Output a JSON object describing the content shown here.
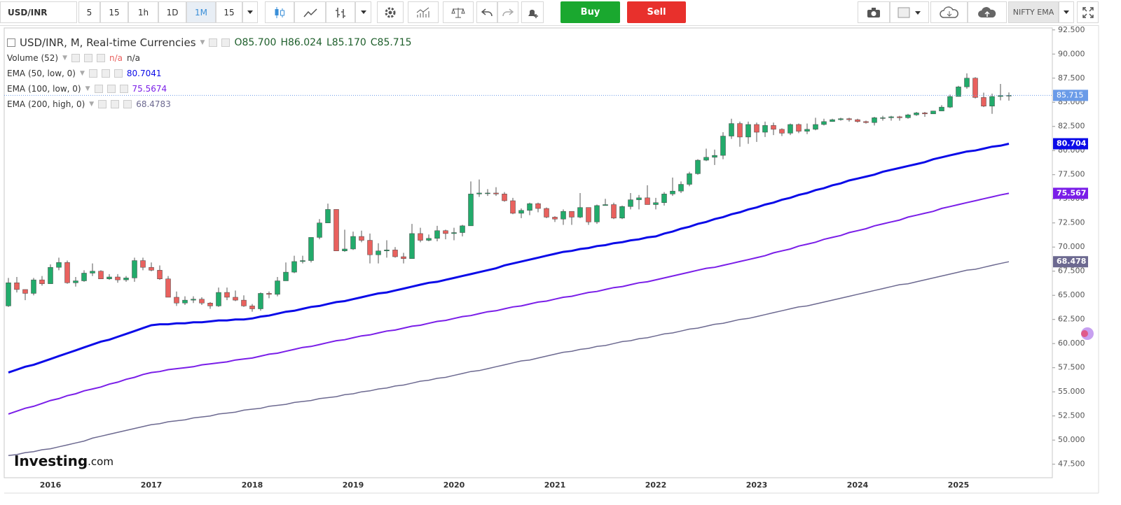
{
  "toolbar": {
    "symbol": "USD/INR",
    "intervals": [
      "5",
      "15",
      "1h",
      "1D",
      "1M",
      "15"
    ],
    "buy": "Buy",
    "sell": "Sell",
    "template": "NIFTY EMA"
  },
  "legend": {
    "title": "USD/INR, M, Real-time Currencies",
    "ohlc": [
      "O85.700",
      "H86.024",
      "L85.170",
      "C85.715"
    ],
    "volume": {
      "name": "Volume (52)",
      "values": [
        "n/a",
        "n/a"
      ]
    }
  },
  "watermark": {
    "brand": "Investing",
    "suffix": ".com"
  },
  "chart_data": {
    "type": "candlestick",
    "categories": [
      null,
      null,
      null,
      null,
      null,
      "2016",
      null,
      null,
      null,
      null,
      null,
      null,
      null,
      null,
      null,
      null,
      null,
      "2017",
      null,
      null,
      null,
      null,
      null,
      null,
      null,
      null,
      null,
      null,
      null,
      "2018",
      null,
      null,
      null,
      null,
      null,
      null,
      null,
      null,
      null,
      null,
      null,
      "2019",
      null,
      null,
      null,
      null,
      null,
      null,
      null,
      null,
      null,
      null,
      null,
      "2020",
      null,
      null,
      null,
      null,
      null,
      null,
      null,
      null,
      null,
      null,
      null,
      "2021",
      null,
      null,
      null,
      null,
      null,
      null,
      null,
      null,
      null,
      null,
      null,
      "2022",
      null,
      null,
      null,
      null,
      null,
      null,
      null,
      null,
      null,
      null,
      null,
      "2023",
      null,
      null,
      null,
      null,
      null,
      null,
      null,
      null,
      null,
      null,
      null,
      "2024",
      null,
      null,
      null,
      null,
      null,
      null,
      null,
      null,
      null,
      null,
      null,
      "2025",
      null,
      null,
      null,
      null,
      null,
      null
    ],
    "open": [
      63.9,
      66.3,
      65.6,
      65.2,
      66.6,
      66.2,
      67.9,
      68.4,
      66.3,
      66.5,
      67.3,
      67.5,
      66.7,
      66.9,
      66.6,
      66.8,
      68.6,
      67.9,
      67.6,
      66.7,
      64.8,
      64.2,
      64.5,
      64.6,
      64.2,
      63.9,
      65.3,
      64.8,
      64.5,
      63.9,
      63.6,
      65.2,
      65.1,
      66.5,
      67.4,
      68.5,
      68.6,
      71.0,
      72.5,
      73.9,
      69.6,
      69.8,
      71.1,
      70.7,
      69.2,
      69.6,
      69.7,
      69.0,
      68.8,
      71.4,
      70.7,
      70.9,
      71.7,
      71.4,
      71.5,
      72.2,
      75.5,
      75.6,
      75.6,
      75.5,
      74.8,
      73.5,
      73.8,
      74.5,
      74.0,
      73.1,
      72.9,
      73.7,
      73.1,
      74.1,
      72.6,
      74.3,
      74.4,
      73.0,
      74.2,
      74.9,
      75.1,
      74.4,
      74.6,
      75.5,
      75.8,
      76.5,
      77.6,
      79.0,
      79.3,
      79.5,
      81.5,
      82.8,
      81.4,
      82.7,
      81.9,
      82.6,
      82.2,
      81.8,
      82.7,
      82.0,
      82.2,
      82.7,
      83.0,
      83.2,
      83.3,
      83.2,
      83.0,
      82.9,
      83.4,
      83.4,
      83.5,
      83.4,
      83.7,
      83.9,
      83.8,
      84.1,
      84.5,
      85.6,
      86.6,
      87.5,
      85.5,
      84.6,
      85.6,
      85.7
    ],
    "high": [
      66.8,
      66.9,
      65.6,
      66.8,
      67.0,
      68.2,
      68.9,
      68.6,
      66.9,
      67.6,
      68.3,
      67.6,
      67.2,
      67.2,
      67.0,
      68.9,
      68.9,
      68.4,
      68.1,
      67.0,
      65.4,
      64.9,
      64.9,
      64.8,
      64.3,
      65.8,
      65.8,
      65.5,
      65.0,
      64.1,
      65.3,
      65.4,
      66.9,
      68.4,
      69.1,
      69.1,
      71.0,
      72.9,
      74.5,
      73.9,
      71.8,
      71.6,
      71.7,
      71.4,
      70.4,
      70.7,
      70.0,
      69.4,
      72.4,
      72.0,
      71.3,
      72.2,
      71.8,
      72.0,
      72.3,
      76.8,
      77.0,
      76.0,
      76.2,
      75.7,
      75.1,
      74.0,
      74.6,
      74.6,
      74.1,
      73.2,
      73.9,
      73.7,
      75.6,
      74.1,
      74.4,
      75.0,
      74.6,
      74.3,
      75.6,
      75.4,
      76.4,
      75.1,
      75.7,
      77.2,
      76.8,
      77.8,
      79.1,
      80.2,
      80.1,
      81.9,
      83.3,
      83.0,
      83.0,
      82.9,
      83.0,
      82.9,
      82.3,
      82.8,
      82.8,
      82.8,
      83.4,
      83.3,
      83.3,
      83.4,
      83.4,
      83.3,
      83.1,
      83.5,
      83.6,
      83.6,
      83.6,
      83.8,
      84.0,
      84.0,
      84.1,
      84.7,
      85.8,
      86.7,
      88.0,
      87.6,
      86.0,
      85.9,
      86.9,
      86.024
    ],
    "low": [
      63.8,
      65.3,
      64.5,
      65.0,
      66.0,
      66.2,
      67.6,
      66.2,
      65.9,
      66.4,
      67.0,
      66.7,
      66.6,
      66.3,
      66.4,
      66.4,
      67.6,
      67.5,
      66.6,
      64.8,
      63.9,
      64.0,
      64.2,
      64.0,
      63.6,
      63.8,
      64.5,
      64.4,
      63.8,
      63.3,
      63.4,
      64.7,
      64.9,
      66.5,
      67.3,
      68.3,
      68.4,
      70.8,
      72.5,
      69.6,
      69.5,
      69.7,
      70.5,
      68.3,
      68.3,
      68.9,
      68.9,
      68.3,
      68.8,
      70.5,
      70.6,
      70.6,
      70.8,
      70.7,
      71.1,
      72.2,
      75.2,
      75.3,
      75.3,
      74.7,
      73.4,
      73.0,
      73.3,
      73.6,
      73.0,
      72.6,
      72.3,
      72.3,
      73.0,
      72.3,
      72.4,
      74.3,
      72.9,
      72.9,
      73.9,
      73.9,
      74.4,
      73.9,
      74.3,
      75.3,
      75.6,
      76.3,
      77.5,
      78.9,
      78.5,
      79.1,
      81.2,
      80.4,
      80.7,
      80.9,
      81.4,
      81.6,
      81.5,
      81.6,
      81.8,
      81.7,
      82.1,
      82.6,
      83.0,
      83.1,
      83.0,
      82.9,
      82.8,
      82.6,
      83.1,
      83.1,
      83.1,
      83.3,
      83.6,
      83.5,
      83.9,
      84.1,
      84.4,
      85.6,
      86.4,
      85.4,
      84.5,
      83.8,
      85.2,
      85.17
    ],
    "close": [
      66.3,
      65.6,
      65.2,
      66.6,
      66.2,
      67.9,
      68.4,
      66.3,
      66.5,
      67.3,
      67.5,
      66.7,
      66.9,
      66.6,
      66.8,
      68.6,
      67.9,
      67.6,
      66.7,
      64.8,
      64.2,
      64.5,
      64.6,
      64.2,
      63.9,
      65.3,
      64.8,
      64.5,
      63.9,
      63.6,
      65.2,
      65.1,
      66.5,
      67.4,
      68.5,
      68.6,
      71.0,
      72.5,
      73.9,
      69.6,
      69.8,
      71.1,
      70.7,
      69.2,
      69.6,
      69.7,
      69.0,
      68.8,
      71.4,
      70.7,
      70.9,
      71.7,
      71.4,
      71.5,
      72.2,
      75.5,
      75.6,
      75.6,
      75.5,
      74.8,
      73.5,
      73.8,
      74.5,
      74.0,
      73.1,
      72.9,
      73.7,
      73.1,
      74.1,
      72.6,
      74.3,
      74.4,
      73.0,
      74.2,
      74.9,
      75.1,
      74.4,
      74.6,
      75.5,
      75.8,
      76.5,
      77.6,
      79.0,
      79.3,
      79.5,
      81.5,
      82.8,
      81.4,
      82.7,
      81.9,
      82.6,
      82.2,
      81.8,
      82.7,
      82.0,
      82.2,
      82.7,
      83.0,
      83.2,
      83.3,
      83.2,
      83.0,
      82.9,
      83.4,
      83.4,
      83.5,
      83.4,
      83.7,
      83.9,
      83.8,
      84.1,
      84.5,
      85.6,
      86.6,
      87.5,
      85.5,
      84.6,
      85.6,
      85.7,
      85.715
    ],
    "up_color": "#22ab6b",
    "down_color": "#e9615e",
    "wick_color": "#555555",
    "last_color": "#6a9be8",
    "series": [
      {
        "name": "EMA (50, low, 0)",
        "color": "#0b0be8",
        "legend_value": "80.7041",
        "values": [
          57.0,
          57.3,
          57.6,
          57.8,
          58.1,
          58.4,
          58.7,
          59.0,
          59.3,
          59.6,
          59.9,
          60.2,
          60.4,
          60.7,
          61.0,
          61.3,
          61.6,
          61.9,
          62.0,
          62.0,
          62.1,
          62.1,
          62.2,
          62.2,
          62.3,
          62.4,
          62.4,
          62.5,
          62.5,
          62.6,
          62.8,
          62.9,
          63.1,
          63.3,
          63.4,
          63.6,
          63.8,
          63.9,
          64.1,
          64.3,
          64.4,
          64.6,
          64.8,
          65.0,
          65.2,
          65.3,
          65.5,
          65.7,
          65.9,
          66.1,
          66.3,
          66.4,
          66.6,
          66.8,
          67.0,
          67.2,
          67.4,
          67.6,
          67.8,
          68.1,
          68.3,
          68.5,
          68.7,
          68.9,
          69.1,
          69.3,
          69.5,
          69.6,
          69.8,
          69.9,
          70.1,
          70.2,
          70.4,
          70.5,
          70.7,
          70.8,
          71.0,
          71.1,
          71.4,
          71.6,
          71.9,
          72.1,
          72.4,
          72.6,
          72.9,
          73.1,
          73.4,
          73.6,
          73.9,
          74.1,
          74.4,
          74.6,
          74.9,
          75.1,
          75.4,
          75.6,
          75.9,
          76.1,
          76.4,
          76.6,
          76.9,
          77.1,
          77.3,
          77.5,
          77.8,
          78.0,
          78.2,
          78.4,
          78.6,
          78.8,
          79.1,
          79.3,
          79.5,
          79.7,
          79.9,
          80.0,
          80.2,
          80.4,
          80.5,
          80.704
        ]
      },
      {
        "name": "EMA (100, low, 0)",
        "color": "#7a1ee8",
        "legend_value": "75.5674",
        "values": [
          52.7,
          53.0,
          53.3,
          53.5,
          53.8,
          54.1,
          54.3,
          54.6,
          54.8,
          55.1,
          55.3,
          55.5,
          55.8,
          56.0,
          56.3,
          56.5,
          56.8,
          57.0,
          57.1,
          57.3,
          57.4,
          57.5,
          57.6,
          57.8,
          57.9,
          58.0,
          58.1,
          58.3,
          58.4,
          58.5,
          58.7,
          58.9,
          59.0,
          59.2,
          59.4,
          59.6,
          59.7,
          59.9,
          60.1,
          60.3,
          60.4,
          60.6,
          60.8,
          60.9,
          61.1,
          61.3,
          61.4,
          61.6,
          61.8,
          61.9,
          62.1,
          62.3,
          62.4,
          62.6,
          62.8,
          62.9,
          63.1,
          63.3,
          63.4,
          63.6,
          63.8,
          63.9,
          64.1,
          64.3,
          64.4,
          64.6,
          64.8,
          64.9,
          65.1,
          65.3,
          65.4,
          65.6,
          65.8,
          65.9,
          66.1,
          66.3,
          66.4,
          66.6,
          66.8,
          67.0,
          67.2,
          67.4,
          67.6,
          67.8,
          67.9,
          68.1,
          68.3,
          68.5,
          68.7,
          68.9,
          69.1,
          69.4,
          69.6,
          69.8,
          70.1,
          70.3,
          70.5,
          70.8,
          71.0,
          71.2,
          71.5,
          71.7,
          71.9,
          72.2,
          72.4,
          72.6,
          72.8,
          73.1,
          73.3,
          73.5,
          73.7,
          74.0,
          74.2,
          74.4,
          74.6,
          74.8,
          75.0,
          75.2,
          75.4,
          75.567
        ]
      },
      {
        "name": "EMA (200, high, 0)",
        "color": "#6c6990",
        "legend_value": "68.4783",
        "values": [
          48.4,
          48.5,
          48.7,
          48.8,
          49.0,
          49.1,
          49.3,
          49.5,
          49.7,
          49.9,
          50.2,
          50.4,
          50.6,
          50.8,
          51.0,
          51.2,
          51.4,
          51.6,
          51.7,
          51.9,
          52.0,
          52.1,
          52.3,
          52.4,
          52.5,
          52.7,
          52.8,
          52.9,
          53.1,
          53.2,
          53.3,
          53.5,
          53.6,
          53.7,
          53.9,
          54.0,
          54.1,
          54.3,
          54.4,
          54.5,
          54.7,
          54.8,
          55.0,
          55.1,
          55.3,
          55.4,
          55.6,
          55.7,
          55.9,
          56.1,
          56.2,
          56.4,
          56.5,
          56.7,
          56.9,
          57.1,
          57.2,
          57.4,
          57.6,
          57.8,
          58.0,
          58.2,
          58.3,
          58.5,
          58.7,
          58.9,
          59.1,
          59.2,
          59.4,
          59.5,
          59.7,
          59.8,
          60.0,
          60.2,
          60.3,
          60.5,
          60.6,
          60.8,
          61.0,
          61.1,
          61.3,
          61.5,
          61.6,
          61.8,
          62.0,
          62.1,
          62.3,
          62.5,
          62.6,
          62.8,
          63.0,
          63.2,
          63.4,
          63.6,
          63.8,
          63.9,
          64.1,
          64.3,
          64.5,
          64.7,
          64.9,
          65.1,
          65.3,
          65.5,
          65.7,
          65.9,
          66.1,
          66.2,
          66.4,
          66.6,
          66.8,
          67.0,
          67.2,
          67.4,
          67.6,
          67.7,
          67.9,
          68.1,
          68.3,
          68.478
        ]
      }
    ],
    "ylim": [
      46.1,
      92.7
    ],
    "yticks": [
      {
        "value": 47.5,
        "label": "47.500"
      },
      {
        "value": 50,
        "label": "50.000"
      },
      {
        "value": 52.5,
        "label": "52.500"
      },
      {
        "value": 55,
        "label": "55.000"
      },
      {
        "value": 57.5,
        "label": "57.500"
      },
      {
        "value": 60,
        "label": "60.000"
      },
      {
        "value": 62.5,
        "label": "62.500"
      },
      {
        "value": 65,
        "label": "65.000"
      },
      {
        "value": 67.5,
        "label": "67.500"
      },
      {
        "value": 70,
        "label": "70.000"
      },
      {
        "value": 72.5,
        "label": "72.500"
      },
      {
        "value": 75,
        "label": "75.000"
      },
      {
        "value": 77.5,
        "label": "77.500"
      },
      {
        "value": 80,
        "label": "80.000"
      },
      {
        "value": 82.5,
        "label": "82.500"
      },
      {
        "value": 85,
        "label": "85.000"
      },
      {
        "value": 87.5,
        "label": "87.500"
      },
      {
        "value": 90,
        "label": "90.000"
      },
      {
        "value": 92.5,
        "label": "92.500"
      }
    ],
    "grid": false
  }
}
